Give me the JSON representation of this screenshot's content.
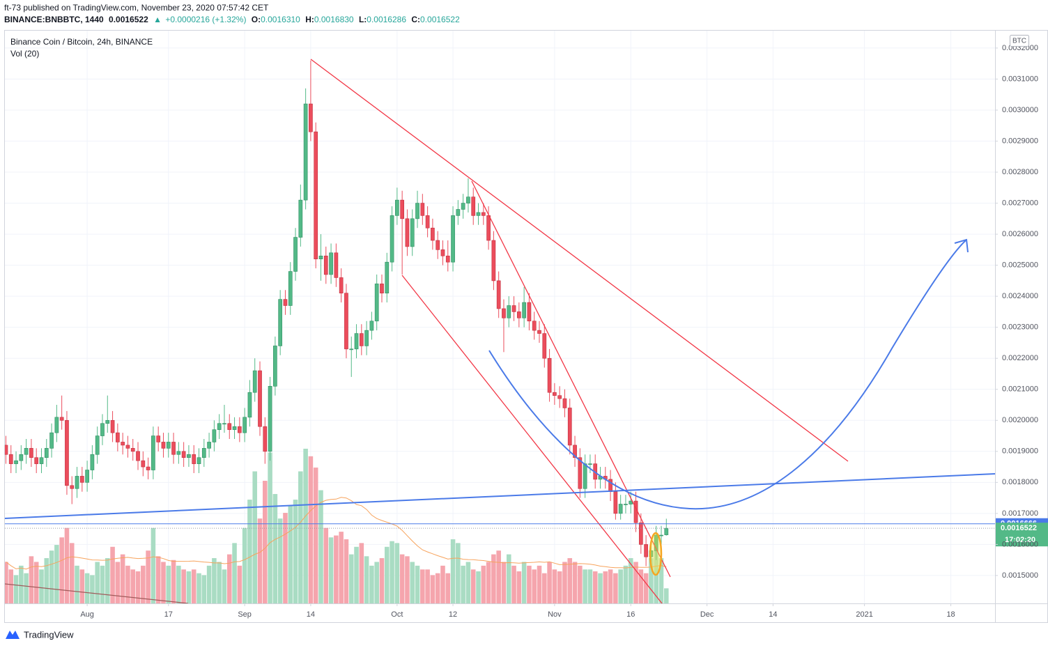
{
  "header": {
    "published": "ft-73 published on TradingView.com, November 23, 2020 07:57:42 CET",
    "symbol": "BINANCE:BNBBTC, 1440",
    "last": "0.0016522",
    "arrow": "▲",
    "change": "+0.0000216 (+1.32%)",
    "ohlc": [
      {
        "key": "O:",
        "value": "0.0016310"
      },
      {
        "key": "H:",
        "value": "0.0016830"
      },
      {
        "key": "L:",
        "value": "0.0016286"
      },
      {
        "key": "C:",
        "value": "0.0016522"
      }
    ]
  },
  "chart_data": {
    "type": "candlestick",
    "title": "Binance Coin / Bitcoin, 24h, BINANCE",
    "volume_label": "Vol (20)",
    "volume_ma_period": 20,
    "unit": "BTC",
    "countdown": "17:02:20",
    "price_line": 0.0016666,
    "up_color": "#53b987",
    "down_color": "#eb4d5c",
    "volume_up_color": "#a9dcc3",
    "volume_down_color": "#f5a5ad",
    "volume_ma_color": "#f7a35c",
    "price_line_color": "#4a7ae8",
    "grid": true,
    "xlim": [
      -0.2,
      194.7
    ],
    "xticks": [
      {
        "value": 16,
        "label": "Aug"
      },
      {
        "value": 32,
        "label": "17"
      },
      {
        "value": 47,
        "label": "Sep"
      },
      {
        "value": 60,
        "label": "14"
      },
      {
        "value": 77,
        "label": "Oct"
      },
      {
        "value": 88,
        "label": "12"
      },
      {
        "value": 108,
        "label": "Nov"
      },
      {
        "value": 123,
        "label": "16"
      },
      {
        "value": 138,
        "label": "Dec"
      },
      {
        "value": 151,
        "label": "14"
      },
      {
        "value": 169,
        "label": "2021"
      },
      {
        "value": 186,
        "label": "18"
      }
    ],
    "ylim": [
      0.00141,
      0.003256
    ],
    "yticks": [
      {
        "value": 0.0015,
        "label": "0.0015000"
      },
      {
        "value": 0.0016,
        "label": "0.0016000"
      },
      {
        "value": 0.0017,
        "label": "0.0017000"
      },
      {
        "value": 0.0018,
        "label": "0.0018000"
      },
      {
        "value": 0.0019,
        "label": "0.0019000"
      },
      {
        "value": 0.002,
        "label": "0.0020000"
      },
      {
        "value": 0.0021,
        "label": "0.0021000"
      },
      {
        "value": 0.0022,
        "label": "0.0022000"
      },
      {
        "value": 0.0023,
        "label": "0.0023000"
      },
      {
        "value": 0.0024,
        "label": "0.0024000"
      },
      {
        "value": 0.0025,
        "label": "0.0025000"
      },
      {
        "value": 0.0026,
        "label": "0.0026000"
      },
      {
        "value": 0.0027,
        "label": "0.0027000"
      },
      {
        "value": 0.0028,
        "label": "0.0028000"
      },
      {
        "value": 0.0029,
        "label": "0.0029000"
      },
      {
        "value": 0.003,
        "label": "0.0030000"
      },
      {
        "value": 0.0031,
        "label": "0.0031000"
      },
      {
        "value": 0.0032,
        "label": "0.0032000"
      }
    ],
    "open": [
      0.00192,
      0.00189,
      0.00186,
      0.00187,
      0.00189,
      0.00191,
      0.00188,
      0.00186,
      0.00188,
      0.00191,
      0.00196,
      0.00201,
      0.002,
      0.00179,
      0.00178,
      0.00182,
      0.0018,
      0.00184,
      0.00189,
      0.00195,
      0.00199,
      0.002,
      0.00196,
      0.00193,
      0.00192,
      0.00191,
      0.0019,
      0.00187,
      0.00185,
      0.00184,
      0.00195,
      0.00193,
      0.00191,
      0.00193,
      0.00189,
      0.0019,
      0.00188,
      0.00189,
      0.00186,
      0.00188,
      0.00191,
      0.00193,
      0.00197,
      0.00199,
      0.00199,
      0.00197,
      0.00198,
      0.00196,
      0.00201,
      0.00209,
      0.00216,
      0.00198,
      0.0019,
      0.00211,
      0.00224,
      0.00239,
      0.00237,
      0.00248,
      0.00259,
      0.00271,
      0.00302,
      0.00293,
      0.00252,
      0.00253,
      0.00247,
      0.00254,
      0.00246,
      0.00241,
      0.00223,
      0.00223,
      0.00228,
      0.00224,
      0.00229,
      0.00232,
      0.00244,
      0.00241,
      0.00251,
      0.00266,
      0.00271,
      0.00265,
      0.00256,
      0.00265,
      0.0027,
      0.00266,
      0.00262,
      0.00258,
      0.00255,
      0.00253,
      0.00251,
      0.00266,
      0.00268,
      0.0027,
      0.00272,
      0.00266,
      0.00267,
      0.00266,
      0.00258,
      0.00245,
      0.00236,
      0.00233,
      0.00237,
      0.00235,
      0.00233,
      0.00238,
      0.00232,
      0.00229,
      0.00228,
      0.0022,
      0.00209,
      0.00208,
      0.00207,
      0.00204,
      0.00192,
      0.00188,
      0.00178,
      0.00186,
      0.00186,
      0.00181,
      0.00182,
      0.00181,
      0.00177,
      0.0017,
      0.00173,
      0.00173,
      0.00174,
      0.00167,
      0.0016,
      0.00156,
      0.00158,
      0.00163,
      0.001631
    ],
    "high": [
      0.00195,
      0.00192,
      0.0019,
      0.00192,
      0.00194,
      0.00194,
      0.00191,
      0.00191,
      0.00194,
      0.00199,
      0.00205,
      0.00208,
      0.00203,
      0.00182,
      0.00185,
      0.00185,
      0.00187,
      0.00192,
      0.00198,
      0.00202,
      0.00208,
      0.00203,
      0.00199,
      0.00196,
      0.00195,
      0.00194,
      0.00193,
      0.0019,
      0.00188,
      0.00198,
      0.00198,
      0.00196,
      0.00196,
      0.00196,
      0.00193,
      0.00193,
      0.00192,
      0.00192,
      0.00191,
      0.00194,
      0.00196,
      0.002,
      0.00202,
      0.00205,
      0.00202,
      0.00201,
      0.00201,
      0.00204,
      0.00213,
      0.0022,
      0.00219,
      0.00201,
      0.00214,
      0.00227,
      0.00242,
      0.00242,
      0.00251,
      0.00262,
      0.00276,
      0.00307,
      0.00316,
      0.00296,
      0.0026,
      0.00256,
      0.00257,
      0.00257,
      0.00249,
      0.00244,
      0.00227,
      0.00231,
      0.00231,
      0.00232,
      0.00235,
      0.00247,
      0.00247,
      0.00254,
      0.00269,
      0.00275,
      0.00274,
      0.00268,
      0.00268,
      0.00274,
      0.00273,
      0.00269,
      0.00265,
      0.00261,
      0.00258,
      0.00258,
      0.00269,
      0.00271,
      0.00273,
      0.00278,
      0.00275,
      0.0027,
      0.0027,
      0.00269,
      0.00261,
      0.00248,
      0.00239,
      0.0024,
      0.0024,
      0.00238,
      0.00243,
      0.00241,
      0.00235,
      0.00232,
      0.00231,
      0.00223,
      0.00212,
      0.00211,
      0.0021,
      0.00207,
      0.00195,
      0.00191,
      0.00189,
      0.00189,
      0.00189,
      0.00185,
      0.00185,
      0.00184,
      0.0018,
      0.00176,
      0.00176,
      0.00177,
      0.00177,
      0.0017,
      0.00163,
      0.00161,
      0.00166,
      0.00166,
      0.001683
    ],
    "low": [
      0.00186,
      0.00183,
      0.00183,
      0.00184,
      0.00186,
      0.00185,
      0.00183,
      0.00183,
      0.00185,
      0.00188,
      0.00193,
      0.00197,
      0.00176,
      0.00173,
      0.00175,
      0.00177,
      0.00177,
      0.00181,
      0.00186,
      0.00192,
      0.00196,
      0.00193,
      0.0019,
      0.00189,
      0.00188,
      0.00187,
      0.00184,
      0.00182,
      0.00181,
      0.00181,
      0.0019,
      0.00188,
      0.00188,
      0.00186,
      0.00186,
      0.00185,
      0.00185,
      0.00183,
      0.00183,
      0.00185,
      0.00188,
      0.0019,
      0.00194,
      0.00196,
      0.00194,
      0.00194,
      0.00193,
      0.00193,
      0.00198,
      0.00206,
      0.00195,
      0.00186,
      0.00187,
      0.00208,
      0.00221,
      0.00234,
      0.00234,
      0.00245,
      0.00256,
      0.00268,
      0.0029,
      0.00249,
      0.00245,
      0.00244,
      0.00244,
      0.00243,
      0.00238,
      0.0022,
      0.00214,
      0.0022,
      0.00221,
      0.00221,
      0.00226,
      0.00229,
      0.00238,
      0.00238,
      0.00248,
      0.00263,
      0.00247,
      0.00253,
      0.00253,
      0.00262,
      0.00263,
      0.00259,
      0.00255,
      0.00252,
      0.0025,
      0.00248,
      0.00248,
      0.00263,
      0.00265,
      0.00267,
      0.00263,
      0.00263,
      0.00263,
      0.00255,
      0.00242,
      0.00233,
      0.00222,
      0.0023,
      0.00232,
      0.0023,
      0.0023,
      0.00229,
      0.00226,
      0.00225,
      0.00217,
      0.00206,
      0.00205,
      0.00204,
      0.00201,
      0.00189,
      0.00185,
      0.00175,
      0.00175,
      0.00183,
      0.00178,
      0.00178,
      0.00178,
      0.00174,
      0.00168,
      0.00168,
      0.0017,
      0.0017,
      0.00164,
      0.00157,
      0.00153,
      0.00153,
      0.00155,
      0.0016,
      0.0016286
    ],
    "close": [
      0.00189,
      0.00186,
      0.00187,
      0.00189,
      0.00191,
      0.00188,
      0.00186,
      0.00188,
      0.00191,
      0.00196,
      0.00201,
      0.002,
      0.00179,
      0.00178,
      0.00182,
      0.0018,
      0.00184,
      0.00189,
      0.00195,
      0.00199,
      0.002,
      0.00196,
      0.00193,
      0.00192,
      0.00191,
      0.0019,
      0.00187,
      0.00185,
      0.00184,
      0.00195,
      0.00193,
      0.00191,
      0.00193,
      0.00189,
      0.0019,
      0.00188,
      0.00189,
      0.00186,
      0.00188,
      0.00191,
      0.00193,
      0.00197,
      0.00199,
      0.00199,
      0.00197,
      0.00198,
      0.00196,
      0.00201,
      0.00209,
      0.00216,
      0.00198,
      0.0019,
      0.00211,
      0.00224,
      0.00239,
      0.00237,
      0.00248,
      0.00259,
      0.00271,
      0.00302,
      0.00293,
      0.00252,
      0.00253,
      0.00247,
      0.00254,
      0.00246,
      0.00241,
      0.00223,
      0.00223,
      0.00228,
      0.00224,
      0.00229,
      0.00232,
      0.00244,
      0.00241,
      0.00251,
      0.00266,
      0.00271,
      0.00265,
      0.00256,
      0.00265,
      0.0027,
      0.00266,
      0.00262,
      0.00258,
      0.00255,
      0.00253,
      0.00251,
      0.00266,
      0.00268,
      0.0027,
      0.00272,
      0.00266,
      0.00267,
      0.00266,
      0.00258,
      0.00245,
      0.00236,
      0.00233,
      0.00237,
      0.00235,
      0.00233,
      0.00238,
      0.00232,
      0.00229,
      0.00228,
      0.0022,
      0.00209,
      0.00208,
      0.00207,
      0.00204,
      0.00192,
      0.00188,
      0.00178,
      0.00186,
      0.00186,
      0.00181,
      0.00182,
      0.00181,
      0.00177,
      0.0017,
      0.00173,
      0.00173,
      0.00174,
      0.00167,
      0.0016,
      0.00156,
      0.00158,
      0.00163,
      0.00163,
      0.0016522
    ],
    "volume": [
      22,
      18,
      15,
      20,
      16,
      25,
      22,
      18,
      24,
      28,
      31,
      35,
      40,
      32,
      20,
      18,
      16,
      15,
      22,
      20,
      24,
      30,
      22,
      26,
      20,
      18,
      17,
      20,
      28,
      40,
      25,
      22,
      20,
      23,
      20,
      18,
      17,
      18,
      16,
      15,
      20,
      24,
      22,
      18,
      26,
      32,
      20,
      40,
      55,
      70,
      45,
      65,
      80,
      58,
      45,
      48,
      52,
      55,
      70,
      82,
      78,
      72,
      60,
      40,
      35,
      36,
      38,
      34,
      26,
      30,
      32,
      25,
      20,
      22,
      24,
      30,
      33,
      32,
      26,
      25,
      22,
      20,
      18,
      18,
      15,
      16,
      20,
      16,
      34,
      32,
      20,
      22,
      18,
      17,
      20,
      22,
      26,
      28,
      22,
      26,
      20,
      17,
      22,
      20,
      18,
      20,
      16,
      22,
      18,
      17,
      22,
      24,
      22,
      20,
      18,
      18,
      17,
      16,
      17,
      18,
      16,
      18,
      20,
      24,
      22,
      18,
      16,
      24,
      28,
      24,
      8
    ]
  },
  "footer": {
    "brand": "TradingView"
  }
}
